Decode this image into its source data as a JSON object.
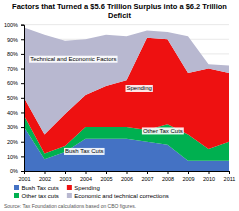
{
  "chart_data": {
    "type": "area",
    "title": "Factors that Turned a $5.6 Trillion Surplus into a $6.2 Trillion\nDeficit",
    "x": [
      2001,
      2002,
      2003,
      2004,
      2005,
      2006,
      2007,
      2008,
      2009,
      2010,
      2011
    ],
    "xlim": [
      2001,
      2011
    ],
    "xticks": [
      2001,
      2002,
      2003,
      2004,
      2005,
      2006,
      2007,
      2008,
      2009,
      2010,
      2011
    ],
    "ylim": [
      0,
      100
    ],
    "yticks": [
      {
        "value": 0,
        "label": "0%"
      },
      {
        "value": 10,
        "label": "10%"
      },
      {
        "value": 20,
        "label": "20%"
      },
      {
        "value": 30,
        "label": "30%"
      },
      {
        "value": 40,
        "label": "40%"
      },
      {
        "value": 50,
        "label": "50%"
      },
      {
        "value": 60,
        "label": "60%"
      },
      {
        "value": 70,
        "label": "70%"
      },
      {
        "value": 80,
        "label": "80%"
      },
      {
        "value": 90,
        "label": "90%"
      },
      {
        "value": 100,
        "label": "100%"
      }
    ],
    "stacked": true,
    "grid": true,
    "legend": "bottom",
    "series": [
      {
        "name": "Bush Tax cuts",
        "color": "#4472c4",
        "values": [
          30,
          8,
          13,
          22,
          22,
          22,
          20,
          18,
          7,
          7,
          7
        ]
      },
      {
        "name": "Other tax cuts",
        "color": "#00b050",
        "values": [
          8,
          4,
          4,
          8,
          8,
          8,
          8,
          14,
          18,
          8,
          13
        ]
      },
      {
        "name": "Spending",
        "color": "#ee1111",
        "values": [
          12,
          13,
          22,
          22,
          28,
          32,
          63,
          58,
          42,
          55,
          47
        ]
      },
      {
        "name": "Economic and technical corrections",
        "color": "#b8b8d0",
        "values": [
          48,
          68,
          50,
          38,
          35,
          30,
          5,
          5,
          25,
          3,
          5
        ]
      }
    ],
    "annotations": [
      "Technical and Economic Factors",
      "Spending",
      "Other Tax Cuts",
      "Bush Tax Cuts"
    ],
    "source": "Source: Tax Foundation calculations based on CBO figures."
  }
}
